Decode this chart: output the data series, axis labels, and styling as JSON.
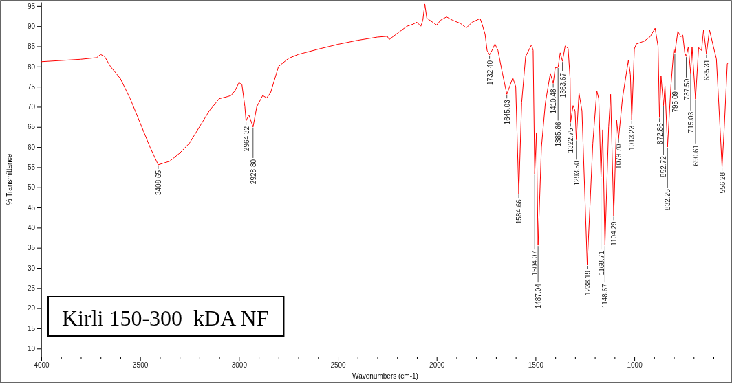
{
  "chart_data": {
    "type": "line",
    "xlabel": "Wavenumbers (cm-1)",
    "ylabel": "% Transmittance",
    "xlim": [
      4000,
      520
    ],
    "ylim": [
      8,
      96
    ],
    "xticks": [
      4000,
      {
        "value": 3900,
        "label": null
      },
      {
        "value": 3800,
        "label": null
      },
      {
        "value": 3700,
        "label": null
      },
      {
        "value": 3600,
        "label": null
      },
      3500,
      {
        "value": 3400,
        "label": null
      },
      {
        "value": 3300,
        "label": null
      },
      {
        "value": 3200,
        "label": null
      },
      {
        "value": 3100,
        "label": null
      },
      3000,
      {
        "value": 2900,
        "label": null
      },
      {
        "value": 2800,
        "label": null
      },
      {
        "value": 2700,
        "label": null
      },
      {
        "value": 2600,
        "label": null
      },
      2500,
      {
        "value": 2400,
        "label": null
      },
      {
        "value": 2300,
        "label": null
      },
      {
        "value": 2200,
        "label": null
      },
      {
        "value": 2100,
        "label": null
      },
      2000,
      {
        "value": 1900,
        "label": null
      },
      {
        "value": 1800,
        "label": null
      },
      {
        "value": 1700,
        "label": null
      },
      {
        "value": 1600,
        "label": null
      },
      1500,
      {
        "value": 1400,
        "label": null
      },
      {
        "value": 1300,
        "label": null
      },
      {
        "value": 1200,
        "label": null
      },
      {
        "value": 1100,
        "label": null
      },
      1000,
      {
        "value": 900,
        "label": null
      },
      {
        "value": 800,
        "label": null
      },
      {
        "value": 700,
        "label": null
      },
      {
        "value": 600,
        "label": null
      }
    ],
    "yticks": [
      10,
      15,
      20,
      25,
      30,
      35,
      40,
      45,
      50,
      55,
      60,
      65,
      70,
      75,
      80,
      85,
      90,
      95
    ],
    "grid": false,
    "marker": "none",
    "line_style": "solid",
    "series": [
      {
        "color": "#ff0000",
        "x": [
          4000,
          3900,
          3800,
          3720,
          3700,
          3680,
          3650,
          3600,
          3550,
          3500,
          3450,
          3408.65,
          3350,
          3300,
          3250,
          3200,
          3150,
          3100,
          3060,
          3040,
          3020,
          3000,
          2985,
          2970,
          2964.32,
          2950,
          2928.8,
          2910,
          2880,
          2860,
          2840,
          2800,
          2750,
          2700,
          2600,
          2500,
          2400,
          2300,
          2250,
          2240,
          2200,
          2150,
          2120,
          2100,
          2080,
          2070,
          2060,
          2050,
          2000,
          1980,
          1950,
          1920,
          1880,
          1850,
          1820,
          1780,
          1770,
          1755,
          1745,
          1732.4,
          1720,
          1705,
          1690,
          1670,
          1645.03,
          1615,
          1600,
          1584.66,
          1570,
          1550,
          1520,
          1512,
          1504.07,
          1495,
          1487.04,
          1470,
          1450,
          1425,
          1410.48,
          1400,
          1385.86,
          1375,
          1363.67,
          1350,
          1335,
          1325,
          1322.75,
          1310,
          1300,
          1293.5,
          1280,
          1265,
          1238.19,
          1210,
          1190,
          1180,
          1168.71,
          1160,
          1148.67,
          1130,
          1120,
          1104.29,
          1090,
          1079.7,
          1060,
          1030,
          1020,
          1013.23,
          1000,
          990,
          950,
          920,
          895,
          880,
          872.86,
          865,
          852.72,
          845,
          832.25,
          815,
          800,
          795.09,
          780,
          765,
          755,
          745,
          737.5,
          727,
          715.03,
          708,
          690.61,
          675,
          660,
          650,
          635.31,
          620,
          600,
          585,
          570,
          556.28,
          545,
          530,
          522
        ],
        "values": [
          81.2,
          81.5,
          81.8,
          82.2,
          83,
          82.5,
          80,
          77,
          72,
          66,
          60,
          55.6,
          56.5,
          58.5,
          61,
          65,
          69,
          72,
          72.5,
          72.8,
          74,
          76,
          75.5,
          70,
          66.5,
          68,
          65,
          70,
          72.8,
          72.2,
          73.5,
          80,
          82,
          83,
          84.3,
          85.5,
          86.5,
          87.3,
          87.5,
          86.7,
          88.2,
          90,
          90.5,
          91,
          90,
          91.5,
          95.5,
          92,
          90.3,
          91.5,
          92.3,
          91.5,
          90.7,
          89.6,
          91,
          91.9,
          90.5,
          88,
          84,
          82.9,
          84,
          85.6,
          84,
          79,
          73.1,
          77.2,
          75,
          48.4,
          71,
          82.5,
          85.4,
          84,
          53.3,
          63.6,
          35.6,
          60,
          71,
          78.3,
          75.8,
          79.7,
          79.8,
          83.4,
          81.3,
          85.1,
          84.5,
          77,
          66.1,
          70.3,
          69,
          61.8,
          73.4,
          69,
          30.7,
          61,
          74,
          72,
          52.5,
          64.3,
          35.6,
          65,
          73.1,
          42.9,
          66.7,
          62.1,
          72.1,
          81.6,
          78,
          66.7,
          84.4,
          85.6,
          86.3,
          87.4,
          89.5,
          85,
          67.3,
          77.6,
          70.3,
          75.2,
          60,
          75.2,
          84.4,
          83.4,
          88.7,
          87.4,
          87.8,
          83.4,
          82.5,
          84.9,
          78.3,
          84.9,
          71.9,
          84.7,
          84,
          89.1,
          83.1,
          89.1,
          84.9,
          81.9,
          68,
          55.1,
          65,
          80.7,
          81
        ]
      }
    ],
    "annotations": [
      "Kirli 150-300  kDA NF",
      {
        "text": "3408.65",
        "x": 3408.65,
        "y": 55.6
      },
      {
        "text": "2964.32",
        "x": 2964.32,
        "y": 66.5
      },
      {
        "text": "2928.80",
        "x": 2928.8,
        "y": 65
      },
      {
        "text": "1732.40",
        "x": 1732.4,
        "y": 82.9
      },
      {
        "text": "1645.03",
        "x": 1645.03,
        "y": 73.1
      },
      {
        "text": "1584.66",
        "x": 1584.66,
        "y": 48.4
      },
      {
        "text": "1504.07",
        "x": 1504.07,
        "y": 53.3
      },
      {
        "text": "1487.04",
        "x": 1487.04,
        "y": 35.6
      },
      {
        "text": "1410.48",
        "x": 1410.48,
        "y": 75.8
      },
      {
        "text": "1385.86",
        "x": 1385.86,
        "y": 79.8
      },
      {
        "text": "1363.67",
        "x": 1363.67,
        "y": 81.3
      },
      {
        "text": "1322.75",
        "x": 1322.75,
        "y": 66.1
      },
      {
        "text": "1293.50",
        "x": 1293.5,
        "y": 61.8
      },
      {
        "text": "1238.19",
        "x": 1238.19,
        "y": 30.7
      },
      {
        "text": "1168.71",
        "x": 1168.71,
        "y": 52.5
      },
      {
        "text": "1148.67",
        "x": 1148.67,
        "y": 35.6
      },
      {
        "text": "1104.29",
        "x": 1104.29,
        "y": 42.9
      },
      {
        "text": "1079.70",
        "x": 1079.7,
        "y": 62.1
      },
      {
        "text": "1013.23",
        "x": 1013.23,
        "y": 66.7
      },
      {
        "text": "872.86",
        "x": 872.86,
        "y": 67.3
      },
      {
        "text": "852.72",
        "x": 852.72,
        "y": 70.3
      },
      {
        "text": "832.25",
        "x": 832.25,
        "y": 60
      },
      {
        "text": "795.09",
        "x": 795.09,
        "y": 83.4
      },
      {
        "text": "737.50",
        "x": 737.5,
        "y": 82.5
      },
      {
        "text": "715.03",
        "x": 715.03,
        "y": 78.3
      },
      {
        "text": "690.61",
        "x": 690.61,
        "y": 71.9
      },
      {
        "text": "635.31",
        "x": 635.31,
        "y": 83.1
      },
      {
        "text": "556.28",
        "x": 556.28,
        "y": 55.1
      }
    ]
  }
}
